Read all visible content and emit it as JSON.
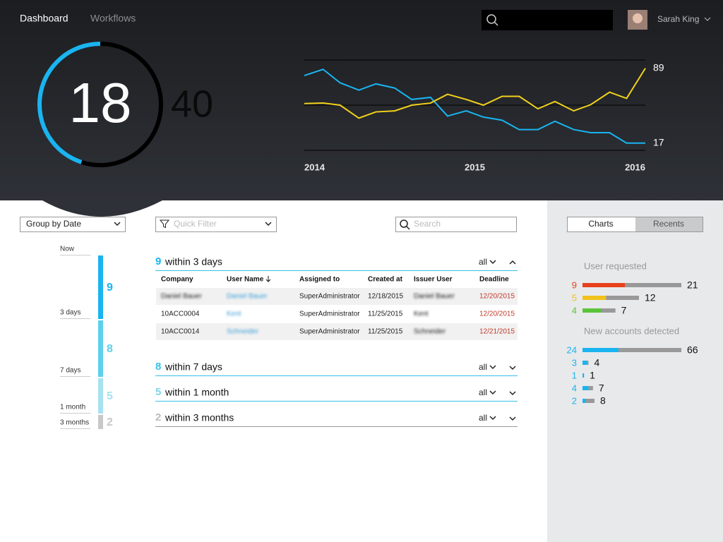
{
  "nav": {
    "tabs": [
      "Dashboard",
      "Workflows"
    ],
    "user": "Sarah King"
  },
  "gauge": {
    "value": 18,
    "total": 40
  },
  "chart_data": {
    "type": "line",
    "x": [
      2014,
      2014.11,
      2014.21,
      2014.32,
      2014.42,
      2014.53,
      2014.63,
      2014.74,
      2014.84,
      2014.95,
      2015.05,
      2015.16,
      2015.26,
      2015.37,
      2015.47,
      2015.58,
      2015.68,
      2015.79,
      2015.89,
      2016
    ],
    "xlim": [
      2014,
      2016
    ],
    "xticks": [
      2014,
      2015,
      2016
    ],
    "ylim": [
      10,
      97
    ],
    "yticks": [
      10,
      53.5,
      97
    ],
    "grid": true,
    "series": [
      {
        "color": "#1ab4f0",
        "values": [
          82,
          88,
          75,
          68,
          74,
          70,
          59,
          61,
          43,
          48,
          42,
          39,
          30,
          30,
          38,
          30,
          27,
          27,
          17,
          17
        ]
      },
      {
        "color": "#f2d21b",
        "values": [
          55,
          55.5,
          53.5,
          41,
          47,
          48,
          53.5,
          55.5,
          64,
          59,
          53.5,
          62,
          62,
          50,
          57,
          48,
          54,
          66,
          60,
          89
        ]
      }
    ]
  },
  "filters": {
    "group": "Group by Date",
    "quick_filter": "Quick Filter",
    "search": "Search"
  },
  "timeline": {
    "labels": [
      "Now",
      "3 days",
      "7 days",
      "1 month",
      "3 months"
    ],
    "bars": [
      {
        "value": 9,
        "color": "#1ab4f0"
      },
      {
        "value": 8,
        "color": "#5dd0ec"
      },
      {
        "value": 5,
        "color": "#a6e2f0"
      },
      {
        "value": 2,
        "color": "#c8c8c8"
      }
    ]
  },
  "groups": [
    {
      "count": 9,
      "label": "within 3 days",
      "filter": "all",
      "color": "#1ab4f0"
    },
    {
      "count": 8,
      "label": "within 7 days",
      "filter": "all",
      "color": "#35c4e6"
    },
    {
      "count": 5,
      "label": "within 1 month",
      "filter": "all",
      "color": "#7fd6ea"
    },
    {
      "count": 2,
      "label": "within 3 months",
      "filter": "all",
      "color": "#bbbbbb"
    }
  ],
  "table": {
    "headers": [
      "Company",
      "User Name",
      "Assigned to",
      "Created at",
      "Issuer User",
      "Deadline"
    ],
    "rows": [
      [
        "Daniel Bauer",
        "Daniel Bauer",
        "SuperAdministrator",
        "12/18/2015",
        "Daniel Bauer",
        "12/20/2015"
      ],
      [
        "10ACC0004",
        "Kent",
        "SuperAdministrator",
        "11/25/2015",
        "Kent",
        "12/20/2015"
      ],
      [
        "10ACC0014",
        "Schneider",
        "SuperAdministrator",
        "11/25/2015",
        "Schneider",
        "12/21/2015"
      ]
    ]
  },
  "side": {
    "tabs": [
      "Charts",
      "Recents"
    ],
    "sections": [
      {
        "title": "User requested",
        "rows": [
          {
            "part": 9,
            "total": 21,
            "color": "#e8401c"
          },
          {
            "part": 5,
            "total": 12,
            "color": "#f2c21b"
          },
          {
            "part": 4,
            "total": 7,
            "color": "#5cc43a"
          }
        ]
      },
      {
        "title": "New accounts detected",
        "rows": [
          {
            "part": 24,
            "total": 66,
            "color": "#1ab4f0"
          },
          {
            "part": 3,
            "total": 4,
            "color": "#1ab4f0"
          },
          {
            "part": 1,
            "total": 1,
            "color": "#1ab4f0"
          },
          {
            "part": 4,
            "total": 7,
            "color": "#1ab4f0"
          },
          {
            "part": 2,
            "total": 8,
            "color": "#1ab4f0"
          }
        ]
      }
    ]
  }
}
